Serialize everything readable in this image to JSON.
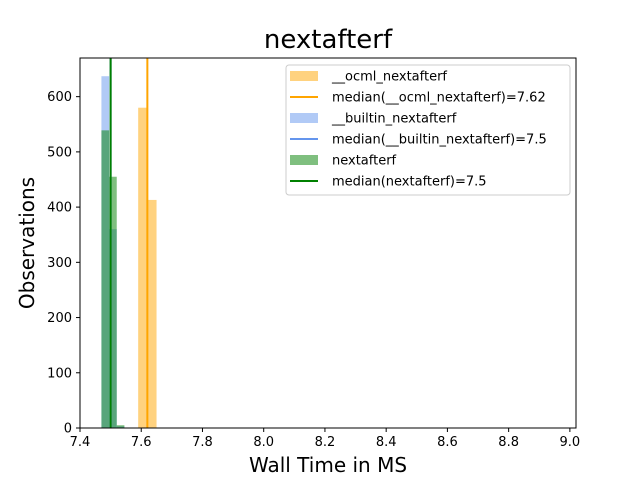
{
  "chart_data": {
    "type": "bar",
    "title": "nextafterf",
    "xlabel": "Wall Time in MS",
    "ylabel": "Observations",
    "xlim": [
      7.4,
      9.02
    ],
    "ylim": [
      0,
      670
    ],
    "xticks": [
      "7.4",
      "7.6",
      "7.8",
      "8.0",
      "8.2",
      "8.4",
      "8.6",
      "8.8",
      "9.0"
    ],
    "yticks": [
      "0",
      "100",
      "200",
      "300",
      "400",
      "500",
      "600"
    ],
    "grid": false,
    "legend_position": "top-right",
    "series": [
      {
        "name": "__ocml_nextafterf",
        "color": "#ffa500",
        "alpha": 0.5,
        "bins": [
          {
            "x0": 7.59,
            "x1": 7.62,
            "count": 580
          },
          {
            "x0": 7.62,
            "x1": 7.65,
            "count": 413
          }
        ],
        "median": 7.62,
        "median_label": "median(__ocml_nextafterf)=7.62"
      },
      {
        "name": "__builtin_nextafterf",
        "color": "#6495ed",
        "alpha": 0.5,
        "bins": [
          {
            "x0": 7.47,
            "x1": 7.495,
            "count": 637
          },
          {
            "x0": 7.495,
            "x1": 7.52,
            "count": 360
          },
          {
            "x0": 7.52,
            "x1": 7.545,
            "count": 3
          }
        ],
        "median": 7.5,
        "median_label": "median(__builtin_nextafterf)=7.5"
      },
      {
        "name": "nextafterf",
        "color": "#008000",
        "alpha": 0.5,
        "bins": [
          {
            "x0": 7.47,
            "x1": 7.495,
            "count": 539
          },
          {
            "x0": 7.495,
            "x1": 7.52,
            "count": 455
          },
          {
            "x0": 7.52,
            "x1": 7.545,
            "count": 5
          }
        ],
        "median": 7.5,
        "median_label": "median(nextafterf)=7.5"
      }
    ]
  }
}
